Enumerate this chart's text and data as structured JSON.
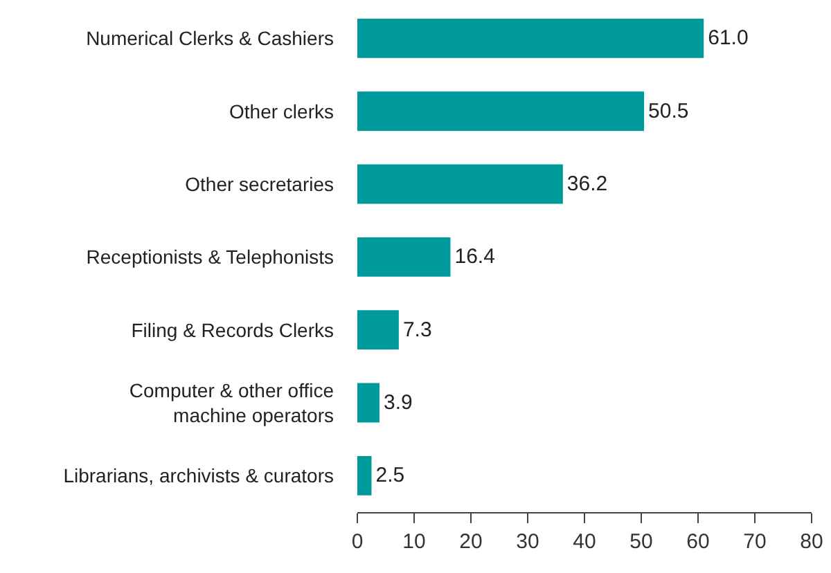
{
  "chart_data": {
    "type": "bar",
    "orientation": "horizontal",
    "categories": [
      "Numerical Clerks & Cashiers",
      "Other clerks",
      "Other secretaries",
      "Receptionists & Telephonists",
      "Filing & Records Clerks",
      "Computer & other office\nmachine operators",
      "Librarians, archivists & curators"
    ],
    "values": [
      61.0,
      50.5,
      36.2,
      16.4,
      7.3,
      3.9,
      2.5
    ],
    "value_labels": [
      "61.0",
      "50.5",
      "36.2",
      "16.4",
      "7.3",
      "3.9",
      "2.5"
    ],
    "color": "#009a9c",
    "xlim": [
      0,
      80
    ],
    "xticks": [
      0,
      10,
      20,
      30,
      40,
      50,
      60,
      70,
      80
    ],
    "grid": false,
    "legend": false
  }
}
